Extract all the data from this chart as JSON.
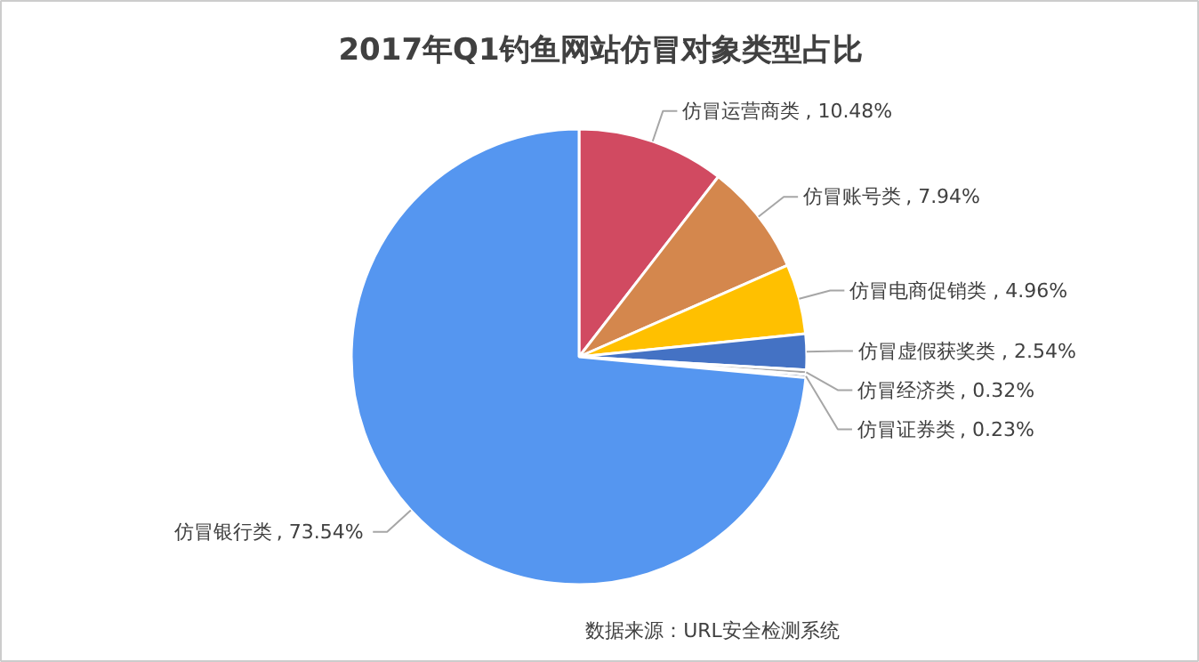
{
  "chart_data": {
    "type": "pie",
    "title": "2017年Q1钓鱼网站仿冒对象类型占比",
    "categories": [
      "仿冒运营商类",
      "仿冒账号类",
      "仿冒电商促销类",
      "仿冒虚假获奖类",
      "仿冒经济类",
      "仿冒证券类",
      "仿冒银行类"
    ],
    "values": [
      10.48,
      7.94,
      4.96,
      2.54,
      0.32,
      0.23,
      73.54
    ],
    "colors": [
      "#d14a61",
      "#d4874d",
      "#ffc000",
      "#4472c4",
      "#a5a5a5",
      "#264478",
      "#5596f0"
    ],
    "value_labels": [
      ", 10.48%",
      ", 7.94%",
      ", 4.96%",
      ", 2.54%",
      ", 0.32%",
      ", 0.23%",
      ", 73.54%"
    ],
    "annotations": [
      "数据来源：URL安全检测系统"
    ]
  }
}
